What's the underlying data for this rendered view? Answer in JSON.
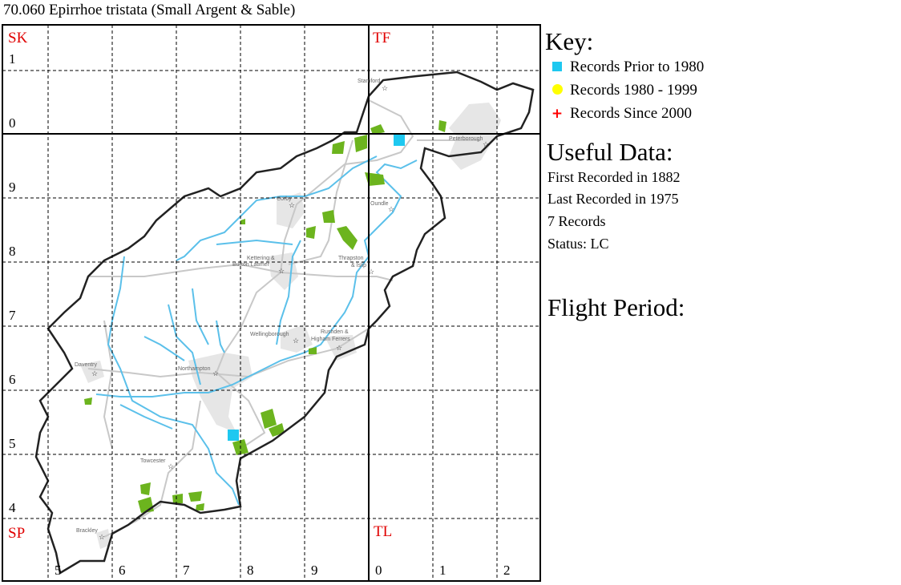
{
  "title": "70.060 Epirrhoe tristata (Small Argent & Sable)",
  "map": {
    "squares": [
      "SK",
      "TF",
      "SP",
      "TL"
    ],
    "row_labels": [
      "1",
      "0",
      "9",
      "8",
      "7",
      "6",
      "5",
      "4"
    ],
    "col_labels": [
      "5",
      "6",
      "7",
      "8",
      "9",
      "0",
      "1",
      "2"
    ],
    "towns": [
      "Stamford",
      "Peterborough",
      "Corby",
      "Oundle",
      "Kettering &",
      "Burton Latimer",
      "Thrapston",
      "& Islip",
      "Wellingborough",
      "Rushden &",
      "Higham Ferrers",
      "Daventry",
      "Northampton",
      "Towcester",
      "Brackley"
    ],
    "colors": {
      "prior_1980": "#1ec8f0",
      "1980_1999": "#ffff00",
      "since_2000": "#ff0000",
      "woodland": "#6cb41e",
      "river": "#5bc0ea",
      "urban": "#e4e4e4",
      "roads": "#c8c8c8"
    },
    "records_prior_1980": 2
  },
  "key": {
    "title": "Key:",
    "items": [
      {
        "label": "Records Prior to 1980",
        "icon": "square-icon",
        "color": "#1ec8f0"
      },
      {
        "label": "Records 1980 - 1999",
        "icon": "circle-icon",
        "color": "#ffff00"
      },
      {
        "label": "Records Since 2000",
        "icon": "plus-icon",
        "color": "#ff0000"
      }
    ]
  },
  "useful_data": {
    "title": "Useful Data:",
    "first": "First Recorded in 1882",
    "last": "Last Recorded in 1975",
    "records": "7 Records",
    "status": "Status: LC"
  },
  "flight_period": {
    "title": "Flight Period:"
  }
}
